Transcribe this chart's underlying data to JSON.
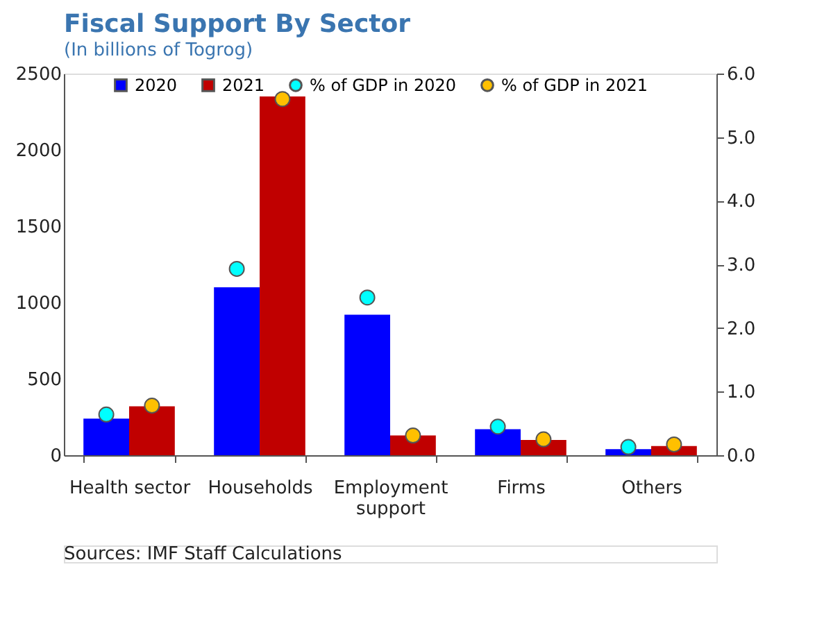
{
  "chart_data": {
    "type": "bar",
    "title": "Fiscal Support By Sector",
    "subtitle": "(In billions of Togrog)",
    "categories": [
      "Health sector",
      "Households",
      "Employment support",
      "Firms",
      "Others"
    ],
    "series": [
      {
        "name": "2020",
        "color": "#0000ff",
        "values": [
          240,
          1100,
          920,
          170,
          40
        ]
      },
      {
        "name": "2021",
        "color": "#c00000",
        "values": [
          320,
          2350,
          130,
          100,
          60
        ]
      },
      {
        "name": "% of GDP in 2020",
        "type": "scatter",
        "axis": "y2",
        "marker": "circle",
        "color": "#00ffff",
        "values": [
          0.64,
          2.93,
          2.48,
          0.45,
          0.13
        ]
      },
      {
        "name": "% of GDP in 2021",
        "type": "scatter",
        "axis": "y2",
        "marker": "circle",
        "color": "#ffc000",
        "values": [
          0.78,
          5.6,
          0.31,
          0.25,
          0.17
        ]
      }
    ],
    "ylim": [
      0,
      2500
    ],
    "yticks": [
      0,
      500,
      1000,
      1500,
      2000,
      2500
    ],
    "y2lim": [
      0,
      6.0
    ],
    "y2ticks": [
      {
        "value": 0,
        "label": "0.0"
      },
      {
        "value": 1,
        "label": "1.0"
      },
      {
        "value": 2,
        "label": "2.0"
      },
      {
        "value": 3,
        "label": "3.0"
      },
      {
        "value": 4,
        "label": "4.0"
      },
      {
        "value": 5,
        "label": "5.0"
      },
      {
        "value": 6,
        "label": "6.0"
      }
    ],
    "grid": false,
    "legend": "top",
    "annotations": [
      "Sources: IMF Staff Calculations"
    ]
  }
}
